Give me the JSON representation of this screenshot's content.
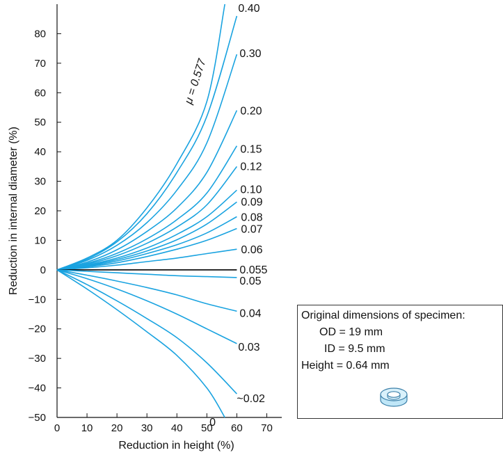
{
  "chart_data": {
    "type": "line",
    "xlabel": "Reduction in height (%)",
    "ylabel": "Reduction in internal diameter (%)",
    "xlim": [
      0,
      75
    ],
    "ylim": [
      -50,
      90
    ],
    "xticks": [
      0,
      10,
      20,
      30,
      40,
      50,
      60,
      70
    ],
    "yticks": [
      -50,
      -40,
      -30,
      -20,
      -10,
      0,
      10,
      20,
      30,
      40,
      50,
      60,
      70,
      80
    ],
    "grid": false,
    "series": [
      {
        "name": "μ = 0.577",
        "points": [
          [
            0,
            0
          ],
          [
            10,
            4
          ],
          [
            20,
            10
          ],
          [
            30,
            21
          ],
          [
            40,
            36
          ],
          [
            50,
            57
          ],
          [
            56,
            90
          ]
        ]
      },
      {
        "name": "0.40",
        "points": [
          [
            0,
            0
          ],
          [
            10,
            3.6
          ],
          [
            20,
            9.5
          ],
          [
            30,
            19
          ],
          [
            40,
            33
          ],
          [
            50,
            52
          ],
          [
            60,
            86
          ]
        ]
      },
      {
        "name": "0.30",
        "points": [
          [
            0,
            0
          ],
          [
            10,
            3.2
          ],
          [
            20,
            8.3
          ],
          [
            30,
            16
          ],
          [
            40,
            27
          ],
          [
            50,
            43
          ],
          [
            60,
            73
          ]
        ]
      },
      {
        "name": "0.20",
        "points": [
          [
            0,
            0
          ],
          [
            10,
            2.6
          ],
          [
            20,
            6.8
          ],
          [
            30,
            13
          ],
          [
            40,
            21
          ],
          [
            50,
            33
          ],
          [
            60,
            54
          ]
        ]
      },
      {
        "name": "0.15",
        "points": [
          [
            0,
            0
          ],
          [
            10,
            2.2
          ],
          [
            20,
            5.6
          ],
          [
            30,
            10.5
          ],
          [
            40,
            17
          ],
          [
            50,
            26
          ],
          [
            60,
            42
          ]
        ]
      },
      {
        "name": "0.12",
        "points": [
          [
            0,
            0
          ],
          [
            10,
            1.9
          ],
          [
            20,
            4.8
          ],
          [
            30,
            9
          ],
          [
            40,
            14.5
          ],
          [
            50,
            22
          ],
          [
            60,
            35
          ]
        ]
      },
      {
        "name": "0.10",
        "points": [
          [
            0,
            0
          ],
          [
            10,
            1.6
          ],
          [
            20,
            4
          ],
          [
            30,
            7.4
          ],
          [
            40,
            12
          ],
          [
            50,
            18
          ],
          [
            60,
            27
          ]
        ]
      },
      {
        "name": "0.09",
        "points": [
          [
            0,
            0
          ],
          [
            10,
            1.4
          ],
          [
            20,
            3.5
          ],
          [
            30,
            6.4
          ],
          [
            40,
            10.2
          ],
          [
            50,
            15.5
          ],
          [
            60,
            23
          ]
        ]
      },
      {
        "name": "0.08",
        "points": [
          [
            0,
            0
          ],
          [
            10,
            1.2
          ],
          [
            20,
            3
          ],
          [
            30,
            5.5
          ],
          [
            40,
            8.5
          ],
          [
            50,
            12.5
          ],
          [
            60,
            18
          ]
        ]
      },
      {
        "name": "0.07",
        "points": [
          [
            0,
            0
          ],
          [
            10,
            1
          ],
          [
            20,
            2.4
          ],
          [
            30,
            4.5
          ],
          [
            40,
            7
          ],
          [
            50,
            10
          ],
          [
            60,
            14
          ]
        ]
      },
      {
        "name": "0.06",
        "points": [
          [
            0,
            0
          ],
          [
            10,
            0.7
          ],
          [
            20,
            1.6
          ],
          [
            30,
            2.8
          ],
          [
            40,
            4
          ],
          [
            50,
            5.5
          ],
          [
            60,
            7
          ]
        ]
      },
      {
        "name": "0.055",
        "points": [
          [
            0,
            0
          ],
          [
            10,
            0
          ],
          [
            20,
            0
          ],
          [
            30,
            0
          ],
          [
            40,
            0
          ],
          [
            50,
            0
          ],
          [
            60,
            0
          ]
        ]
      },
      {
        "name": "0.05",
        "points": [
          [
            0,
            0
          ],
          [
            10,
            -0.5
          ],
          [
            20,
            -1
          ],
          [
            30,
            -1.5
          ],
          [
            40,
            -2
          ],
          [
            50,
            -2.3
          ],
          [
            60,
            -2.6
          ]
        ]
      },
      {
        "name": "0.04",
        "points": [
          [
            0,
            0
          ],
          [
            10,
            -1.8
          ],
          [
            20,
            -3.8
          ],
          [
            30,
            -6
          ],
          [
            40,
            -8.5
          ],
          [
            50,
            -11.5
          ],
          [
            60,
            -14
          ]
        ]
      },
      {
        "name": "0.03",
        "points": [
          [
            0,
            0
          ],
          [
            10,
            -3
          ],
          [
            20,
            -6.5
          ],
          [
            30,
            -10.5
          ],
          [
            40,
            -15
          ],
          [
            50,
            -20
          ],
          [
            60,
            -25
          ]
        ]
      },
      {
        "name": "~0.02",
        "points": [
          [
            0,
            0
          ],
          [
            10,
            -5
          ],
          [
            20,
            -10.5
          ],
          [
            30,
            -16.5
          ],
          [
            40,
            -23
          ],
          [
            50,
            -31.5
          ],
          [
            60,
            -42
          ]
        ]
      },
      {
        "name": "0",
        "points": [
          [
            0,
            0
          ],
          [
            10,
            -6.5
          ],
          [
            20,
            -13.5
          ],
          [
            30,
            -21
          ],
          [
            40,
            -29
          ],
          [
            50,
            -40
          ],
          [
            56,
            -50
          ]
        ]
      }
    ]
  },
  "info_box": {
    "title": "Original dimensions of specimen:",
    "od": "OD = 19 mm",
    "id": "ID = 9.5 mm",
    "height": "Height = 0.64 mm",
    "icon": "ring-specimen-icon"
  }
}
